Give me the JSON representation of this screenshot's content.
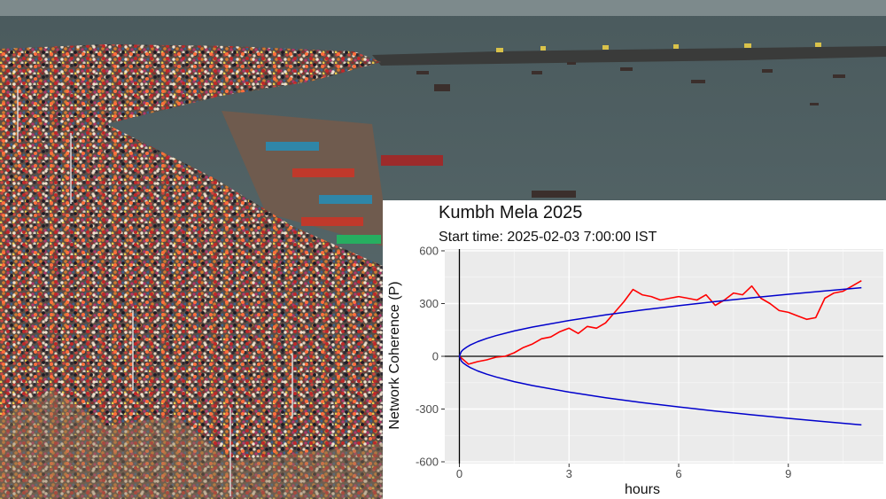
{
  "chart_data": {
    "type": "line",
    "title": "Kumbh Mela 2025",
    "subtitle": "Start time: 2025-02-03 7:00:00 IST",
    "xlabel": "hours",
    "ylabel": "Network Coherence (P)",
    "xlim": [
      -0.4,
      11.6
    ],
    "ylim": [
      -610,
      610
    ],
    "xticks": [
      0,
      3,
      6,
      9
    ],
    "yticks": [
      -600,
      -300,
      0,
      300,
      600
    ],
    "grid": true,
    "legend": "none",
    "series": [
      {
        "color": "#ff0000",
        "x": [
          0,
          0.25,
          0.5,
          0.75,
          1,
          1.25,
          1.5,
          1.75,
          2,
          2.25,
          2.5,
          2.75,
          3,
          3.25,
          3.5,
          3.75,
          4,
          4.25,
          4.5,
          4.75,
          5,
          5.25,
          5.5,
          5.75,
          6,
          6.25,
          6.5,
          6.75,
          7,
          7.25,
          7.5,
          7.75,
          8,
          8.25,
          8.5,
          8.75,
          9,
          9.25,
          9.5,
          9.75,
          10,
          10.25,
          10.5,
          10.75,
          11
        ],
        "values": [
          0,
          -45,
          -30,
          -20,
          -5,
          0,
          20,
          50,
          70,
          100,
          110,
          140,
          160,
          130,
          170,
          160,
          190,
          250,
          310,
          380,
          350,
          340,
          320,
          330,
          340,
          330,
          320,
          350,
          290,
          320,
          360,
          350,
          400,
          330,
          300,
          260,
          250,
          230,
          210,
          220,
          330,
          360,
          370,
          400,
          430
        ]
      },
      {
        "color": "#0000cc",
        "envelope": "+1.96*sqrt(x*3600)",
        "x": [
          0,
          0.05,
          0.1,
          0.2,
          0.3,
          0.5,
          0.75,
          1,
          1.5,
          2,
          3,
          4,
          5,
          6,
          7,
          8,
          9,
          10,
          11
        ],
        "values": [
          0,
          26.3,
          37.2,
          52.6,
          64.4,
          83.2,
          101.9,
          117.6,
          144.0,
          166.3,
          203.7,
          235.2,
          263.0,
          288.1,
          311.1,
          332.6,
          352.8,
          371.9,
          390.0
        ]
      },
      {
        "color": "#0000cc",
        "envelope": "-1.96*sqrt(x*3600)",
        "x": [
          0,
          0.05,
          0.1,
          0.2,
          0.3,
          0.5,
          0.75,
          1,
          1.5,
          2,
          3,
          4,
          5,
          6,
          7,
          8,
          9,
          10,
          11
        ],
        "values": [
          0,
          -26.3,
          -37.2,
          -52.6,
          -64.4,
          -83.2,
          -101.9,
          -117.6,
          -144.0,
          -166.3,
          -203.7,
          -235.2,
          -263.0,
          -288.1,
          -311.1,
          -332.6,
          -352.8,
          -371.9,
          -390.0
        ]
      }
    ]
  }
}
